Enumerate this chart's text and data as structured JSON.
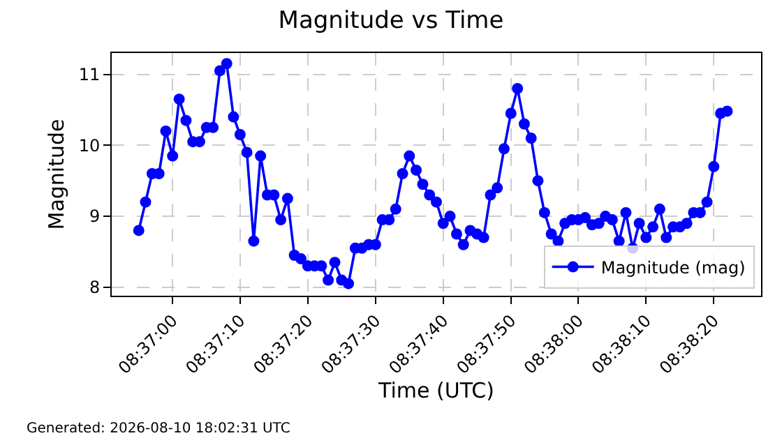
{
  "chart_data": {
    "type": "line",
    "title": "Magnitude vs Time",
    "xlabel": "Time (UTC)",
    "ylabel": "Magnitude",
    "x": [
      8.61528,
      8.61556,
      8.61583,
      8.61611,
      8.61639,
      8.61667,
      8.61694,
      8.61722,
      8.6175,
      8.61778,
      8.61806,
      8.61833,
      8.61861,
      8.61889,
      8.61917,
      8.61944,
      8.61972,
      8.62,
      8.62028,
      8.62056,
      8.62083,
      8.62111,
      8.62139,
      8.62167,
      8.62194,
      8.62222,
      8.6225,
      8.62278,
      8.62306,
      8.62333,
      8.62361,
      8.62389,
      8.62417,
      8.62444,
      8.62472,
      8.625,
      8.62528,
      8.62556,
      8.62583,
      8.62611,
      8.62639,
      8.62667,
      8.62694,
      8.62722,
      8.6275,
      8.62778,
      8.62806,
      8.62833,
      8.62861,
      8.62889,
      8.62917,
      8.62944,
      8.62972,
      8.63,
      8.63028,
      8.63056,
      8.63083,
      8.63111,
      8.63139,
      8.63167,
      8.63194,
      8.63222,
      8.6325,
      8.63278,
      8.63306,
      8.63333,
      8.63361,
      8.63389,
      8.63417,
      8.63444,
      8.63472,
      8.635,
      8.63528,
      8.63556,
      8.63583,
      8.63611,
      8.63639,
      8.63667,
      8.63694,
      8.63722,
      8.6375,
      8.63778,
      8.63806,
      8.63833,
      8.63861,
      8.63889,
      8.63917,
      8.63944
    ],
    "series": [
      {
        "name": "Magnitude (mag)",
        "color": "#0000ff",
        "values": [
          8.8,
          9.2,
          9.6,
          9.6,
          10.2,
          9.85,
          10.65,
          10.35,
          10.05,
          10.05,
          10.25,
          10.25,
          11.05,
          11.15,
          10.4,
          10.15,
          9.9,
          8.65,
          9.85,
          9.3,
          9.3,
          8.95,
          9.25,
          8.45,
          8.4,
          8.3,
          8.3,
          8.3,
          8.1,
          8.35,
          8.1,
          8.05,
          8.55,
          8.55,
          8.6,
          8.6,
          8.95,
          8.95,
          9.1,
          9.6,
          9.85,
          9.65,
          9.45,
          9.3,
          9.2,
          8.9,
          9.0,
          8.75,
          8.6,
          8.8,
          8.75,
          8.7,
          9.3,
          9.4,
          9.95,
          10.45,
          10.8,
          10.3,
          10.1,
          9.5,
          9.05,
          8.75,
          8.65,
          8.9,
          8.95,
          8.95,
          8.98,
          8.88,
          8.9,
          9.0,
          8.95,
          8.65,
          9.05,
          8.55,
          8.9,
          8.7,
          8.85,
          9.1,
          8.7,
          8.85,
          8.85,
          8.9,
          9.05,
          9.05,
          9.2,
          9.7,
          10.45,
          10.48
        ]
      }
    ],
    "xlim": [
      8.61417,
      8.64083
    ],
    "xticks": [
      {
        "value": 8.61667,
        "label": "08:37:00"
      },
      {
        "value": 8.61944,
        "label": "08:37:10"
      },
      {
        "value": 8.62222,
        "label": "08:37:20"
      },
      {
        "value": 8.625,
        "label": "08:37:30"
      },
      {
        "value": 8.62778,
        "label": "08:37:40"
      },
      {
        "value": 8.63056,
        "label": "08:37:50"
      },
      {
        "value": 8.63333,
        "label": "08:38:00"
      },
      {
        "value": 8.63611,
        "label": "08:38:10"
      },
      {
        "value": 8.63889,
        "label": "08:38:20"
      }
    ],
    "ylim": [
      7.88,
      11.3
    ],
    "yticks": [
      8,
      9,
      10,
      11
    ],
    "grid": true,
    "legend": "bottom right",
    "marker": "circle",
    "line_style": "solid",
    "annotations": [
      "Generated: 2026-08-10 18:02:31 UTC"
    ]
  }
}
